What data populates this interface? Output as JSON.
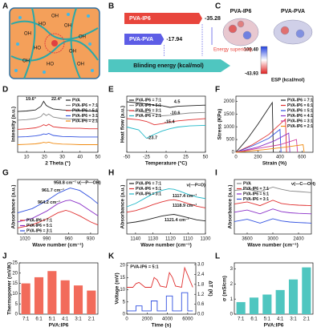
{
  "panel_labels": [
    "A",
    "B",
    "C",
    "D",
    "E",
    "F",
    "G",
    "H",
    "I",
    "J",
    "K",
    "L"
  ],
  "schematic": {
    "labels": [
      "OH",
      "HO",
      "OH",
      "OH",
      "HO",
      "OH",
      "OH",
      "HO",
      "OH",
      "OH"
    ]
  },
  "esp": {
    "molecules": [
      "PVA-IP6",
      "PVA-PVA"
    ],
    "max": "100.40",
    "min": "-43.93",
    "label": "ESP (kcal/mol)"
  },
  "chart_data": [
    {
      "type": "hbar",
      "categories": [
        "PVA-IP6",
        "PVA-PVA"
      ],
      "values": [
        -35.28,
        -17.94
      ],
      "colors": [
        "#e8453c",
        "#5d5de6"
      ],
      "xlim": [
        0,
        -40
      ],
      "xlabel": "Blinding energy (kcal/mol)",
      "annotations": [
        "Energy superiority"
      ]
    },
    {
      "type": "line",
      "xlabel": "2 Theta (°)",
      "ylabel": "Intensity (a.u.)",
      "xlim": [
        5,
        50
      ],
      "xticks": [
        10,
        20,
        30,
        40,
        50
      ],
      "ylim": [
        0,
        11
      ],
      "legend": "upper right",
      "x": [
        5,
        10,
        15,
        18,
        19.6,
        21,
        22.4,
        25,
        30,
        35,
        40,
        45,
        50
      ],
      "series": [
        {
          "name": "PVA",
          "color": "#222222",
          "values": [
            8,
            8.1,
            8.3,
            9,
            10,
            9.2,
            8.9,
            8.5,
            8.3,
            8.2,
            8.2,
            8.1,
            8.1
          ]
        },
        {
          "name": "PVA-IP6 = 7:1",
          "color": "#888888",
          "values": [
            6.3,
            6.4,
            6.6,
            7,
            7.6,
            7.2,
            7.5,
            6.9,
            6.6,
            6.5,
            6.5,
            6.4,
            6.4
          ]
        },
        {
          "name": "PVA-IP6 = 5:1",
          "color": "#e03030",
          "values": [
            4.5,
            4.6,
            4.8,
            5.1,
            5.4,
            5.2,
            5.5,
            5,
            4.8,
            4.7,
            4.7,
            4.6,
            4.6
          ]
        },
        {
          "name": "PVA-IP6 = 3:1",
          "color": "#3050e0",
          "values": [
            3,
            3.05,
            3.2,
            3.4,
            3.6,
            3.5,
            3.7,
            3.3,
            3.1,
            3.05,
            3,
            3,
            3
          ]
        },
        {
          "name": "PVA-IP6 = 2:1",
          "color": "#f08a10",
          "values": [
            1.5,
            1.55,
            1.65,
            1.8,
            1.95,
            1.85,
            2,
            1.75,
            1.6,
            1.55,
            1.5,
            1.5,
            1.5
          ]
        }
      ],
      "annotations": [
        "19.6°",
        "22.4°"
      ]
    },
    {
      "type": "line",
      "xlabel": "Temperature (°C)",
      "ylabel": "Heat flow (a.u.)",
      "xlim": [
        -50,
        50
      ],
      "xticks": [
        -50,
        -25,
        0,
        25,
        50
      ],
      "ylim": [
        0,
        10
      ],
      "legend": "upper left",
      "x": [
        -50,
        -35,
        -25,
        -15,
        -5,
        5,
        15,
        30,
        50
      ],
      "series": [
        {
          "name": "PVA-IP6 = 7:1",
          "color": "#222222",
          "values": [
            9,
            8.8,
            8.6,
            8.4,
            8.3,
            8,
            8.2,
            8.3,
            8.4
          ]
        },
        {
          "name": "PVA-IP6 = 5:1",
          "color": "#888888",
          "values": [
            7.5,
            7.3,
            7.1,
            6.9,
            6.5,
            6.6,
            6.8,
            7,
            7.1
          ]
        },
        {
          "name": "PVA-IP6 = 3:1",
          "color": "#e03030",
          "values": [
            6,
            5.8,
            5.5,
            4.9,
            5.1,
            5.4,
            5.6,
            5.8,
            6
          ]
        },
        {
          "name": "PVA-IP6 = 2:1",
          "color": "#20b8c8",
          "values": [
            4.5,
            4,
            2.5,
            3.2,
            3.8,
            4.2,
            4.5,
            4.7,
            4.8
          ]
        }
      ],
      "annotations": [
        "4.5",
        "-10.6",
        "-15.4",
        "-23.7"
      ]
    },
    {
      "type": "line",
      "xlabel": "Strain (%)",
      "ylabel": "Stress (KPa)",
      "xlim": [
        0,
        700
      ],
      "xticks": [
        0,
        200,
        400,
        600
      ],
      "ylim": [
        0,
        2200
      ],
      "yticks": [
        0,
        500,
        1000,
        1500,
        2000
      ],
      "legend": "upper right",
      "series": [
        {
          "name": "PVA-IP6 = 7:1",
          "color": "#222222",
          "x": [
            0,
            100,
            200,
            330,
            340
          ],
          "values": [
            0,
            500,
            1100,
            1950,
            0
          ]
        },
        {
          "name": "PVA-IP6 = 6:1",
          "color": "#e03030",
          "x": [
            0,
            150,
            300,
            450,
            460
          ],
          "values": [
            0,
            300,
            700,
            1300,
            0
          ]
        },
        {
          "name": "PVA-IP6 = 5:1",
          "color": "#3050e0",
          "x": [
            0,
            150,
            300,
            400,
            410
          ],
          "values": [
            0,
            250,
            550,
            900,
            0
          ]
        },
        {
          "name": "PVA-IP6 = 4:1",
          "color": "#8a30c8",
          "x": [
            0,
            200,
            350,
            480,
            490
          ],
          "values": [
            0,
            200,
            450,
            750,
            0
          ]
        },
        {
          "name": "PVA-IP6 = 3:1",
          "color": "#d040a0",
          "x": [
            0,
            200,
            400,
            550,
            560
          ],
          "values": [
            0,
            150,
            300,
            500,
            0
          ]
        },
        {
          "name": "PVA-IP6 = 2:1",
          "color": "#f08a10",
          "x": [
            0,
            250,
            450,
            610,
            620
          ],
          "values": [
            0,
            100,
            200,
            300,
            0
          ]
        }
      ]
    },
    {
      "type": "line",
      "xlabel": "Wave number (cm⁻¹)",
      "ylabel": "Absorbance (a.u.)",
      "xlim": [
        1030,
        920
      ],
      "xticks": [
        1020,
        990,
        960,
        930
      ],
      "ylim": [
        0,
        9
      ],
      "legend": "lower left",
      "x": [
        1030,
        1010,
        990,
        975,
        964,
        958,
        945,
        930,
        920
      ],
      "series": [
        {
          "name": "PVA-IP6 = 7:1",
          "color": "#e03030",
          "values": [
            1,
            1.5,
            2.5,
            3.5,
            3.9,
            3.7,
            3,
            2,
            1.5
          ]
        },
        {
          "name": "PVA-IP6 = 5:1",
          "color": "#8a30c8",
          "values": [
            2,
            2.6,
            3.8,
            5,
            5.5,
            5.6,
            5,
            3.8,
            3
          ]
        },
        {
          "name": "PVA-IP6 = 3:1",
          "color": "#3050e0",
          "values": [
            3.5,
            4.2,
            5.5,
            6.7,
            7.3,
            7.6,
            7.2,
            6,
            5
          ]
        }
      ],
      "annotations": [
        "958.8 cm⁻¹",
        "961.7 cm⁻¹",
        "964.2 cm⁻¹",
        "ν(—P—OH)"
      ]
    },
    {
      "type": "line",
      "xlabel": "Wave number (cm⁻¹)",
      "ylabel": "Absorbance (a.u.)",
      "xlim": [
        1145,
        1100
      ],
      "xticks": [
        1140,
        1130,
        1120,
        1110,
        1100
      ],
      "ylim": [
        0,
        10
      ],
      "legend": "upper left",
      "x": [
        1145,
        1140,
        1135,
        1130,
        1125,
        1121,
        1118,
        1115,
        1110,
        1105,
        1100
      ],
      "series": [
        {
          "name": "PVA-IP6 = 7:1",
          "color": "#222222",
          "values": [
            2,
            2.2,
            2.5,
            2.9,
            3.3,
            3.5,
            3.6,
            3.4,
            3,
            2.6,
            2.4
          ]
        },
        {
          "name": "PVA-IP6 = 5:1",
          "color": "#e03030",
          "values": [
            4,
            4.3,
            4.8,
            5.4,
            5.9,
            6.2,
            6.3,
            6.1,
            5.6,
            5.1,
            4.8
          ]
        },
        {
          "name": "PVA-IP6 = 3:1",
          "color": "#20b8c8",
          "values": [
            5,
            5.6,
            6.5,
            7.4,
            8,
            8.3,
            8.2,
            7.9,
            7.3,
            6.8,
            6.5
          ]
        }
      ],
      "annotations": [
        "1117.4 cm⁻¹",
        "1118.9 cm⁻¹",
        "1121.4 cm⁻¹",
        "ν(—P=O)"
      ]
    },
    {
      "type": "line",
      "xlabel": "Wave number (cm⁻¹)",
      "ylabel": "Absorbance (a.u.)",
      "xlim": [
        3900,
        2100
      ],
      "xticks": [
        3600,
        3000,
        2400
      ],
      "ylim": [
        0,
        10
      ],
      "legend": "upper left",
      "x": [
        3900,
        3600,
        3300,
        3000,
        2800,
        2600,
        2400,
        2100
      ],
      "series": [
        {
          "name": "PVA",
          "color": "#888888",
          "values": [
            8,
            8.2,
            7.8,
            8.6,
            8.2,
            7.9,
            7.8,
            7.6
          ]
        },
        {
          "name": "PVA-IP6 = 7:1",
          "color": "#e03030",
          "values": [
            5.5,
            5.9,
            5.2,
            6.2,
            5.6,
            5.4,
            5.3,
            5.2
          ]
        },
        {
          "name": "PVA-IP6 = 5:1",
          "color": "#8a30c8",
          "values": [
            4,
            4.4,
            3.7,
            4.6,
            4.1,
            3.9,
            3.8,
            3.7
          ]
        },
        {
          "name": "PVA-IP6 = 3:1",
          "color": "#3050e0",
          "values": [
            2.3,
            2.7,
            2,
            2.8,
            2.4,
            2.2,
            2.1,
            2
          ]
        }
      ],
      "annotations": [
        "ν(—C—OH)"
      ]
    },
    {
      "type": "bar",
      "xlabel": "PVA:IP6",
      "ylabel": "Thermopower (mV/K)",
      "categories": [
        "7:1",
        "6:1",
        "5:1",
        "4:1",
        "3:1",
        "2:1"
      ],
      "values": [
        15,
        18,
        21,
        16.5,
        14,
        11.5
      ],
      "color": "#f26b5b",
      "ylim": [
        0,
        25
      ],
      "yticks": [
        0,
        5,
        10,
        15,
        20,
        25
      ]
    },
    {
      "type": "line",
      "xlabel": "Time (s)",
      "ylabel": "Voltage (mV)",
      "y2label": "ΔT (K)",
      "xlim": [
        0,
        6800
      ],
      "xticks": [
        0,
        2000,
        4000,
        6000
      ],
      "ylim": [
        0,
        21
      ],
      "yticks": [
        0,
        5,
        10,
        15,
        20
      ],
      "y2lim": [
        0,
        3.1
      ],
      "y2ticks": [
        {
          "value": 0,
          "label": "0.0"
        },
        0.6,
        1.2,
        1.8,
        2.4,
        {
          "value": 3,
          "label": "3.0"
        }
      ],
      "series": [
        {
          "name": "Voltage",
          "color": "#e03030",
          "x": [
            0,
            600,
            900,
            1200,
            1500,
            1800,
            2400,
            2700,
            3000,
            3300,
            3900,
            4200,
            4500,
            4800,
            5400,
            5700,
            6000,
            6500
          ],
          "values": [
            11,
            11,
            12.5,
            13,
            12,
            11,
            11,
            15,
            14,
            11.5,
            11,
            17,
            15,
            11.5,
            11,
            19,
            16,
            11
          ]
        },
        {
          "name": "ΔT",
          "color": "#3050e0",
          "axis": "y2",
          "x": [
            0,
            900,
            900,
            1500,
            1500,
            2400,
            2400,
            3000,
            3000,
            3900,
            3900,
            4500,
            4500,
            5400,
            5400,
            6000,
            6000,
            6500
          ],
          "values": [
            0.2,
            0.2,
            0.5,
            0.5,
            0.2,
            0.2,
            0.8,
            0.8,
            0.2,
            0.2,
            1.1,
            1.1,
            0.2,
            0.2,
            1.3,
            1.3,
            0.2,
            0.2
          ]
        }
      ],
      "annotations": [
        "PVA-IP6 = 5:1"
      ]
    },
    {
      "type": "bar",
      "xlabel": "PVA:IP6",
      "ylabel": "σ (mS/cm)",
      "categories": [
        "7:1",
        "6:1",
        "5:1",
        "4:1",
        "3:1",
        "2:1"
      ],
      "values": [
        0.8,
        1.1,
        1.3,
        1.6,
        2.3,
        3.1
      ],
      "color": "#4fc6c0",
      "ylim": [
        0,
        3.4
      ],
      "yticks": [
        0,
        1,
        2,
        3
      ]
    }
  ]
}
